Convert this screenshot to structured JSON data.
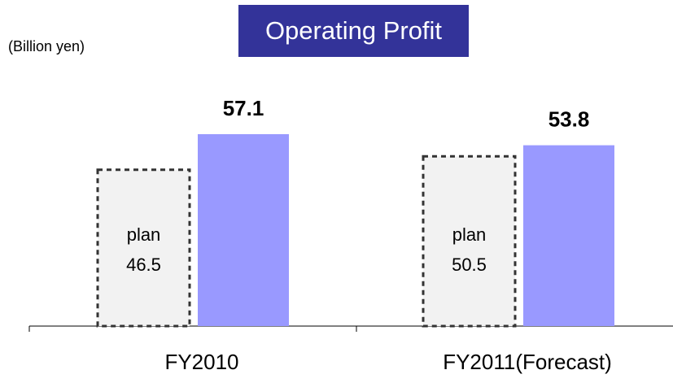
{
  "chart_data": {
    "type": "bar",
    "title": "Operating Profit",
    "unit_label": "(Billion yen)",
    "categories": [
      "FY2010",
      "FY2011(Forecast)"
    ],
    "series": [
      {
        "name": "plan",
        "color": "#f2f2f2",
        "values": [
          46.5,
          50.5
        ]
      },
      {
        "color": "#9999ff",
        "values": [
          57.1,
          53.8
        ]
      }
    ],
    "ylim": [
      0,
      60
    ]
  }
}
